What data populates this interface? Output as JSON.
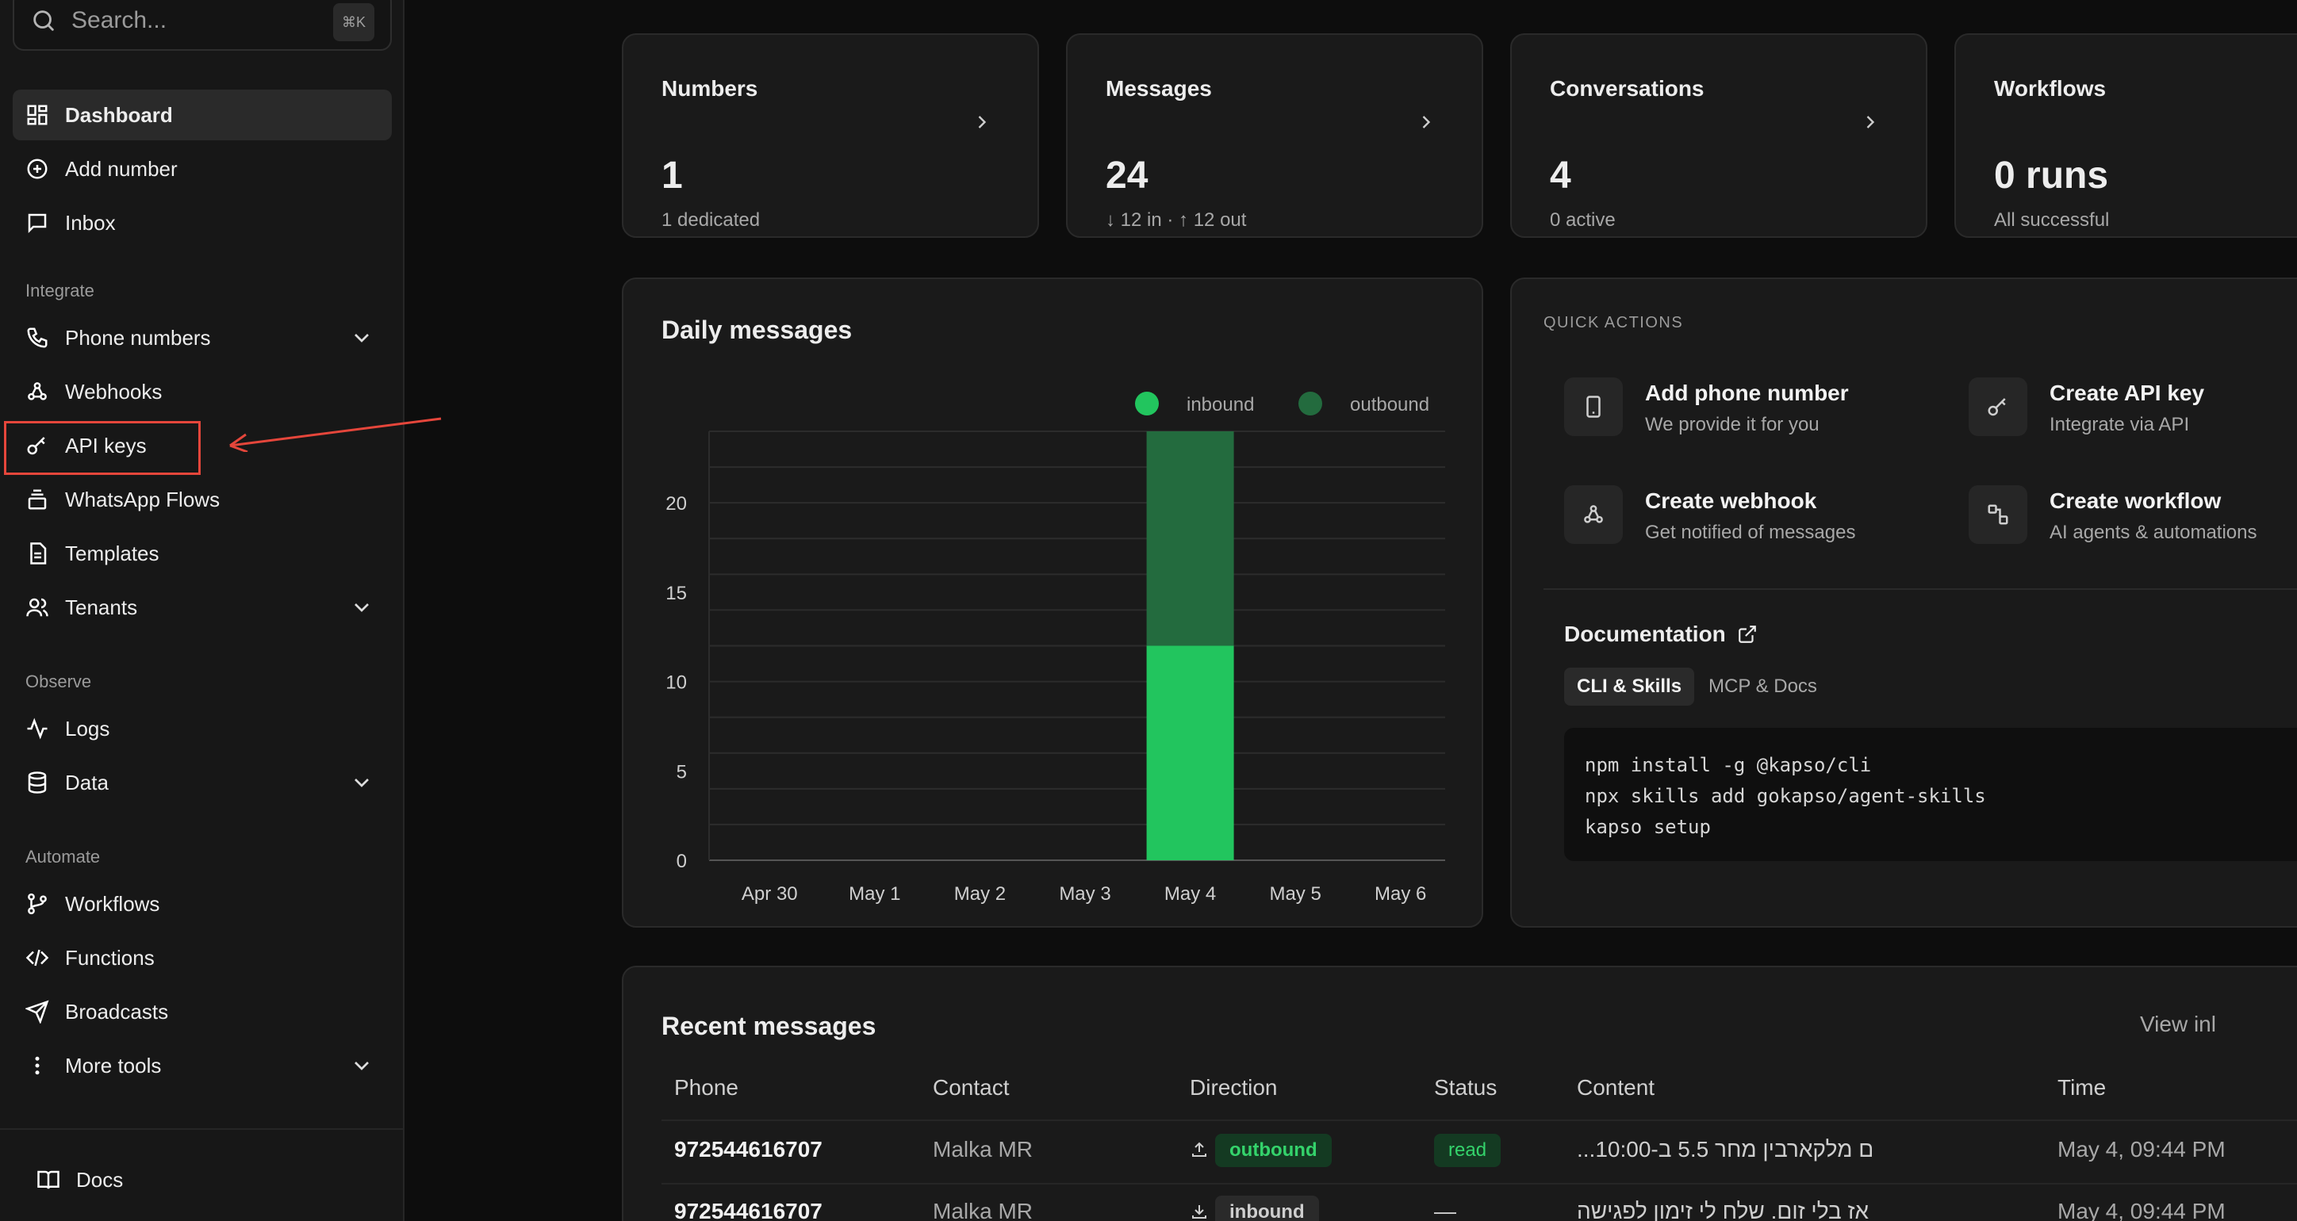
{
  "search": {
    "placeholder": "Search...",
    "shortcut": "⌘K"
  },
  "sidebar": {
    "items": [
      {
        "label": "Dashboard",
        "icon": "dashboard-icon",
        "active": true
      },
      {
        "label": "Add number",
        "icon": "plus-circle-icon"
      },
      {
        "label": "Inbox",
        "icon": "message-icon"
      },
      {
        "label": "Phone numbers",
        "icon": "phone-icon",
        "expandable": true
      },
      {
        "label": "Webhooks",
        "icon": "webhook-icon"
      },
      {
        "label": "API keys",
        "icon": "key-icon"
      },
      {
        "label": "WhatsApp Flows",
        "icon": "stack-icon"
      },
      {
        "label": "Templates",
        "icon": "file-icon"
      },
      {
        "label": "Tenants",
        "icon": "users-icon",
        "expandable": true
      },
      {
        "label": "Logs",
        "icon": "activity-icon"
      },
      {
        "label": "Data",
        "icon": "database-icon",
        "expandable": true
      },
      {
        "label": "Workflows",
        "icon": "git-branch-icon"
      },
      {
        "label": "Functions",
        "icon": "code-icon"
      },
      {
        "label": "Broadcasts",
        "icon": "send-icon"
      },
      {
        "label": "More tools",
        "icon": "more-vertical-icon",
        "expandable": true
      },
      {
        "label": "Docs",
        "icon": "book-icon"
      }
    ],
    "sections": {
      "integrate": "Integrate",
      "observe": "Observe",
      "automate": "Automate"
    }
  },
  "stats": [
    {
      "title": "Numbers",
      "value": "1",
      "sub": "1 dedicated"
    },
    {
      "title": "Messages",
      "value": "24",
      "sub": "↓ 12 in · ↑ 12 out"
    },
    {
      "title": "Conversations",
      "value": "4",
      "sub": "0 active"
    },
    {
      "title": "Workflows",
      "value": "0 runs",
      "sub": "All successful"
    }
  ],
  "chart": {
    "title": "Daily messages"
  },
  "chart_data": {
    "type": "bar",
    "stacked": true,
    "categories": [
      "Apr 30",
      "May 1",
      "May 2",
      "May 3",
      "May 4",
      "May 5",
      "May 6"
    ],
    "series": [
      {
        "name": "inbound",
        "values": [
          0,
          0,
          0,
          0,
          12,
          0,
          0
        ],
        "color": "#22c55e"
      },
      {
        "name": "outbound",
        "values": [
          0,
          0,
          0,
          0,
          12,
          0,
          0
        ],
        "color": "#236b3e"
      }
    ],
    "yticks": [
      0,
      5,
      10,
      15,
      20
    ],
    "ylim": [
      0,
      24
    ],
    "legend": "top-right",
    "grid": true
  },
  "quick_actions": {
    "heading": "QUICK ACTIONS",
    "items": [
      {
        "title": "Add phone number",
        "sub": "We provide it for you",
        "icon": "phone-device-icon"
      },
      {
        "title": "Create API key",
        "sub": "Integrate via API",
        "icon": "key-icon"
      },
      {
        "title": "Create webhook",
        "sub": "Get notified of messages",
        "icon": "webhook-icon"
      },
      {
        "title": "Create workflow",
        "sub": "AI agents & automations",
        "icon": "workflow-icon"
      }
    ]
  },
  "documentation": {
    "title": "Documentation",
    "tabs": [
      "CLI & Skills",
      "MCP & Docs"
    ],
    "code": [
      "npm install -g @kapso/cli",
      "npx skills add gokapso/agent-skills",
      "kapso setup"
    ]
  },
  "recent": {
    "title": "Recent messages",
    "view_link": "View inl",
    "columns": [
      "Phone",
      "Contact",
      "Direction",
      "Status",
      "Content",
      "Time"
    ],
    "rows": [
      {
        "phone": "972544616707",
        "contact": "Malka MR",
        "direction": "outbound",
        "status": "read",
        "content": "ם מלקארבין מחר 5.5 ב-10:00...",
        "time": "May 4, 09:44 PM"
      },
      {
        "phone": "972544616707",
        "contact": "Malka MR",
        "direction": "inbound",
        "status": "—",
        "content": "אז בלי זום. שלח לי זימון לפגישה",
        "time": "May 4, 09:44 PM"
      }
    ]
  }
}
